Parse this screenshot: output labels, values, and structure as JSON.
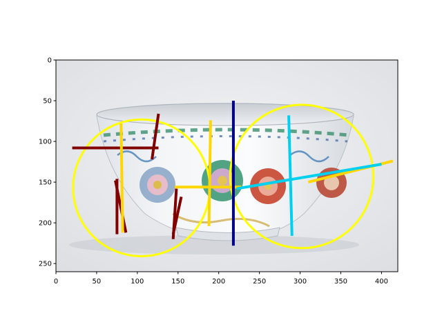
{
  "chart_data": {
    "type": "image_annotation_overlay",
    "title": "",
    "xlabel": "",
    "ylabel": "",
    "xlim": [
      0,
      420
    ],
    "ylim": [
      260,
      0
    ],
    "image_extent": [
      0,
      420,
      260,
      0
    ],
    "image_subject": "porcelain bowl",
    "grid": false,
    "legend": "none",
    "x_ticks": [
      0,
      50,
      100,
      150,
      200,
      250,
      300,
      350,
      400
    ],
    "y_ticks": [
      0,
      50,
      100,
      150,
      200,
      250
    ],
    "circles": [
      {
        "cx": 105,
        "cy": 157,
        "r": 84,
        "color": "#ffff00"
      },
      {
        "cx": 302,
        "cy": 143,
        "r": 88,
        "color": "#ffff00"
      }
    ],
    "segments": [
      {
        "x1": 20,
        "y1": 108,
        "x2": 126,
        "y2": 108,
        "color": "#800000"
      },
      {
        "x1": 126,
        "y1": 66,
        "x2": 118,
        "y2": 122,
        "color": "#800000"
      },
      {
        "x1": 73,
        "y1": 148,
        "x2": 86,
        "y2": 212,
        "color": "#800000"
      },
      {
        "x1": 75,
        "y1": 146,
        "x2": 75,
        "y2": 214,
        "color": "#800000"
      },
      {
        "x1": 148,
        "y1": 158,
        "x2": 144,
        "y2": 220,
        "color": "#800000"
      },
      {
        "x1": 154,
        "y1": 168,
        "x2": 144,
        "y2": 214,
        "color": "#800000"
      },
      {
        "x1": 80,
        "y1": 78,
        "x2": 82,
        "y2": 212,
        "color": "#ffd700"
      },
      {
        "x1": 190,
        "y1": 74,
        "x2": 188,
        "y2": 204,
        "color": "#ffd700"
      },
      {
        "x1": 146,
        "y1": 156,
        "x2": 228,
        "y2": 156,
        "color": "#ffd700"
      },
      {
        "x1": 310,
        "y1": 150,
        "x2": 414,
        "y2": 124,
        "color": "#ffd700"
      },
      {
        "x1": 218,
        "y1": 50,
        "x2": 218,
        "y2": 228,
        "color": "#00008b"
      },
      {
        "x1": 286,
        "y1": 68,
        "x2": 290,
        "y2": 216,
        "color": "#00d0f0"
      },
      {
        "x1": 222,
        "y1": 158,
        "x2": 400,
        "y2": 128,
        "color": "#00d0f0"
      }
    ]
  }
}
